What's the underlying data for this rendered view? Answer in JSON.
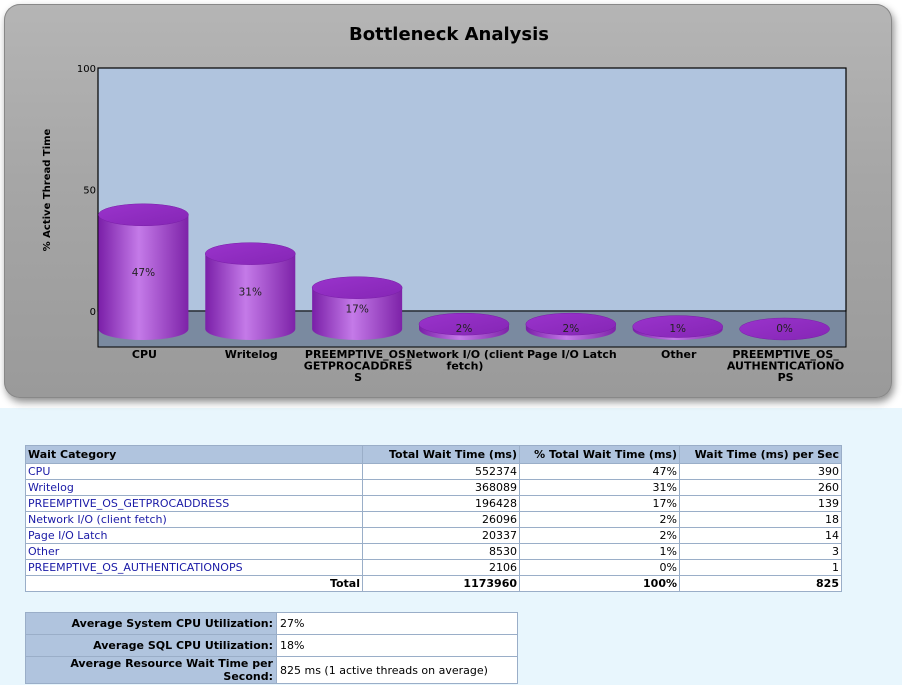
{
  "chart_data": {
    "type": "bar",
    "style": "3d-cylinder",
    "title": "Bottleneck Analysis",
    "ylabel": "% Active Thread Time",
    "xlabel": "",
    "ylim": [
      0,
      100
    ],
    "yticks": [
      "100",
      "50",
      "0"
    ],
    "categories": [
      [
        "CPU"
      ],
      [
        "Writelog"
      ],
      [
        "PREEMPTIVE_OS_",
        "GETPROCADDRES",
        "S"
      ],
      [
        "Network I/O (client",
        "fetch)"
      ],
      [
        "Page I/O Latch"
      ],
      [
        "Other"
      ],
      [
        "PREEMPTIVE_OS_",
        "AUTHENTICATIONO",
        "PS"
      ]
    ],
    "values": [
      47,
      31,
      17,
      2,
      2,
      1,
      0
    ],
    "data_labels": [
      "47%",
      "31%",
      "17%",
      "2%",
      "2%",
      "1%",
      "0%"
    ],
    "bar_color": "#9b30c8",
    "plot_background": "#b0c4de",
    "legend": "none"
  },
  "wait_table": {
    "headers": [
      "Wait Category",
      "Total Wait Time (ms)",
      "% Total Wait Time (ms)",
      "Wait Time (ms) per Sec"
    ],
    "rows": [
      [
        "CPU",
        "552374",
        "47%",
        "390"
      ],
      [
        "Writelog",
        "368089",
        "31%",
        "260"
      ],
      [
        "PREEMPTIVE_OS_GETPROCADDRESS",
        "196428",
        "17%",
        "139"
      ],
      [
        "Network I/O (client fetch)",
        "26096",
        "2%",
        "18"
      ],
      [
        "Page I/O Latch",
        "20337",
        "2%",
        "14"
      ],
      [
        "Other",
        "8530",
        "1%",
        "3"
      ],
      [
        "PREEMPTIVE_OS_AUTHENTICATIONOPS",
        "2106",
        "0%",
        "1"
      ]
    ],
    "total": {
      "label": "Total",
      "wait_time": "1173960",
      "pct": "100%",
      "per_sec": "825"
    }
  },
  "utilization": [
    {
      "label": "Average System CPU Utilization:",
      "value": "27%"
    },
    {
      "label": "Average SQL CPU Utilization:",
      "value": "18%"
    },
    {
      "label": "Average Resource Wait Time per Second:",
      "value": "825 ms  (1 active threads on average)"
    }
  ]
}
